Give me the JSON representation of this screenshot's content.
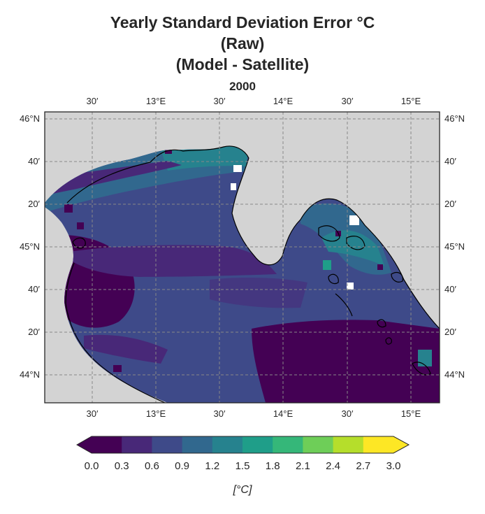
{
  "title": {
    "line1": "Yearly Standard Deviation Error °C",
    "line2": "(Raw)",
    "line3": "(Model - Satellite)",
    "subtitle": "2000"
  },
  "map": {
    "lon_ticks": [
      "30′",
      "13°E",
      "30′",
      "14°E",
      "30′",
      "15°E"
    ],
    "lat_ticks": [
      "46°N",
      "40′",
      "20′",
      "45°N",
      "40′",
      "20′",
      "44°N"
    ],
    "land_color": "#d3d3d3",
    "grid": true,
    "gridline_style": "dashed"
  },
  "colorbar": {
    "tick_labels": [
      "0.0",
      "0.3",
      "0.6",
      "0.9",
      "1.2",
      "1.5",
      "1.8",
      "2.1",
      "2.4",
      "2.7",
      "3.0"
    ],
    "unit_label": "[°C]",
    "extend": "both",
    "colors": [
      "#440154",
      "#482878",
      "#3e4a89",
      "#31688e",
      "#26828e",
      "#1f9e89",
      "#35b779",
      "#6ece58",
      "#b5de2b",
      "#fde725"
    ],
    "under_color": "#440154",
    "over_color": "#fde725"
  }
}
